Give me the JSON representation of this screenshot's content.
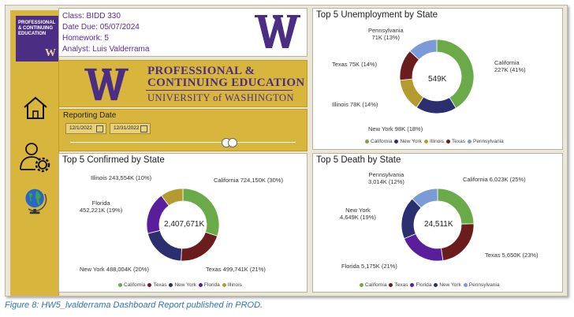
{
  "logo": {
    "text": "PROFESSIONAL\n& CONTINUING\nEDUCATION",
    "letter": "W"
  },
  "info": {
    "class": "Class: BIDD 330",
    "date_due": "Date Due: 05/07/2024",
    "homework": "Homework: 5",
    "analyst": "Analyst: Luis Valderrama"
  },
  "banner": {
    "line1": "PROFESSIONAL &",
    "line2": "CONTINUING EDUCATION",
    "line3": "UNIVERSITY of WASHINGTON"
  },
  "date_filter": {
    "title": "Reporting Date",
    "start": "12/1/2022",
    "end": "12/31/2022"
  },
  "colors": {
    "purple": "#4b2e83",
    "gold": "#d8b63e",
    "california": "#6aaa48",
    "newyork": "#2b2f6f",
    "illinois": "#b59b2e",
    "texas": "#6b1d1d",
    "pennsylvania": "#7a9ad8",
    "florida": "#5a1d9c"
  },
  "icons": [
    "home-icon",
    "user-settings-icon",
    "globe-icon"
  ],
  "caption": "Figure 8: HW5_lvalderrama Dashboard Report published in PROD.",
  "chart_data": [
    {
      "type": "pie",
      "title": "Top 5 Unemployment by State",
      "center_label": "549K",
      "slices": [
        {
          "name": "California",
          "label": "California\n227K (41%)",
          "value": 227,
          "color": "#6aaa48"
        },
        {
          "name": "New York",
          "label": "New York 98K (18%)",
          "value": 98,
          "color": "#2b2f6f"
        },
        {
          "name": "Illinois",
          "label": "Illinois 78K (14%)",
          "value": 78,
          "color": "#b59b2e"
        },
        {
          "name": "Texas",
          "label": "Texas 75K (14%)",
          "value": 75,
          "color": "#6b1d1d"
        },
        {
          "name": "Pennsylvania",
          "label": "Pennsylvania\n71K (13%)",
          "value": 71,
          "color": "#7a9ad8"
        }
      ],
      "legend": [
        "California",
        "New York",
        "Illinois",
        "Texas",
        "Pennsylvania"
      ]
    },
    {
      "type": "pie",
      "title": "Top 5 Confirmed by State",
      "center_label": "2,407,671K",
      "slices": [
        {
          "name": "California",
          "label": "California 724,150K (30%)",
          "value": 724150,
          "color": "#6aaa48"
        },
        {
          "name": "Texas",
          "label": "Texas 499,741K (21%)",
          "value": 499741,
          "color": "#6b1d1d"
        },
        {
          "name": "New York",
          "label": "New York 488,004K (20%)",
          "value": 488004,
          "color": "#2b2f6f"
        },
        {
          "name": "Florida",
          "label": "Florida\n452,221K (19%)",
          "value": 452221,
          "color": "#5a1d9c"
        },
        {
          "name": "Illinois",
          "label": "Illinois 243,554K (10%)",
          "value": 243554,
          "color": "#b59b2e"
        }
      ],
      "legend": [
        "California",
        "Texas",
        "New York",
        "Florida",
        "Illinois"
      ]
    },
    {
      "type": "pie",
      "title": "Top 5 Death by State",
      "center_label": "24,511K",
      "slices": [
        {
          "name": "California",
          "label": "California 6,023K (25%)",
          "value": 6023,
          "color": "#6aaa48"
        },
        {
          "name": "Texas",
          "label": "Texas 5,650K (23%)",
          "value": 5650,
          "color": "#6b1d1d"
        },
        {
          "name": "Florida",
          "label": "Florida 5,175K (21%)",
          "value": 5175,
          "color": "#5a1d9c"
        },
        {
          "name": "New York",
          "label": "New York\n4,649K (19%)",
          "value": 4649,
          "color": "#2b2f6f"
        },
        {
          "name": "Pennsylvania",
          "label": "Pennsylvania\n3,014K (12%)",
          "value": 3014,
          "color": "#7a9ad8"
        }
      ],
      "legend": [
        "California",
        "Texas",
        "Florida",
        "New York",
        "Pennsylvania"
      ]
    }
  ]
}
